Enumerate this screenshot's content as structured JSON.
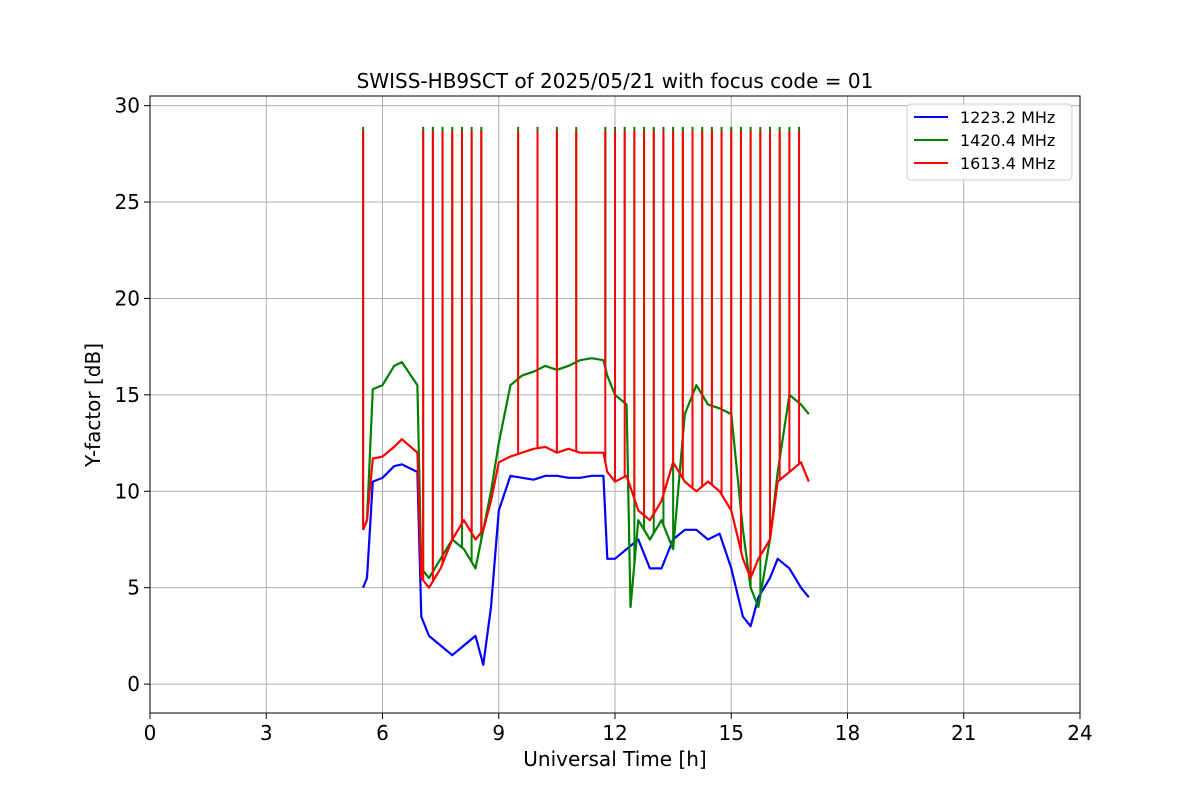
{
  "chart_data": {
    "type": "line",
    "title": "SWISS-HB9SCT of 2025/05/21 with focus code = 01",
    "xlabel": "Universal Time [h]",
    "ylabel": "Y-factor [dB]",
    "xlim": [
      0,
      24
    ],
    "ylim": [
      -1.5,
      30.5
    ],
    "xticks": [
      0,
      3,
      6,
      9,
      12,
      15,
      18,
      21,
      24
    ],
    "yticks": [
      0,
      5,
      10,
      15,
      20,
      25,
      30
    ],
    "grid": true,
    "legend_position": "top-right",
    "series": [
      {
        "name": "1223.2 MHz",
        "color": "#0000ff",
        "x": [
          5.5,
          5.6,
          5.75,
          6.0,
          6.3,
          6.5,
          6.9,
          7.0,
          7.2,
          7.5,
          7.8,
          8.1,
          8.4,
          8.6,
          8.8,
          9.0,
          9.3,
          9.6,
          9.9,
          10.2,
          10.5,
          10.8,
          11.1,
          11.4,
          11.7,
          11.8,
          12.0,
          12.3,
          12.6,
          12.9,
          13.2,
          13.5,
          13.8,
          14.1,
          14.4,
          14.7,
          15.0,
          15.3,
          15.5,
          15.7,
          16.0,
          16.2,
          16.5,
          16.8,
          17.0
        ],
        "y": [
          5.0,
          5.5,
          10.5,
          10.7,
          11.3,
          11.4,
          11.0,
          3.5,
          2.5,
          2.0,
          1.5,
          2.0,
          2.5,
          1.0,
          4.0,
          9.0,
          10.8,
          10.7,
          10.6,
          10.8,
          10.8,
          10.7,
          10.7,
          10.8,
          10.8,
          6.5,
          6.5,
          7.0,
          7.5,
          6.0,
          6.0,
          7.5,
          8.0,
          8.0,
          7.5,
          7.8,
          6.0,
          3.5,
          3.0,
          4.5,
          5.5,
          6.5,
          6.0,
          5.0,
          4.5
        ]
      },
      {
        "name": "1420.4 MHz",
        "color": "#008000",
        "x": [
          5.5,
          5.6,
          5.75,
          6.0,
          6.3,
          6.5,
          6.9,
          7.0,
          7.2,
          7.5,
          7.8,
          8.1,
          8.4,
          8.6,
          8.8,
          9.0,
          9.3,
          9.6,
          9.9,
          10.2,
          10.5,
          10.8,
          11.1,
          11.4,
          11.7,
          11.8,
          12.0,
          12.3,
          12.4,
          12.6,
          12.9,
          13.2,
          13.5,
          13.8,
          14.1,
          14.4,
          14.7,
          15.0,
          15.3,
          15.5,
          15.7,
          16.0,
          16.2,
          16.5,
          16.8,
          17.0
        ],
        "y": [
          8.0,
          8.5,
          15.3,
          15.5,
          16.5,
          16.7,
          15.5,
          6.0,
          5.5,
          6.5,
          7.5,
          7.0,
          6.0,
          8.0,
          10.0,
          12.5,
          15.5,
          16.0,
          16.2,
          16.5,
          16.3,
          16.5,
          16.8,
          16.9,
          16.8,
          16.0,
          15.0,
          14.5,
          4.0,
          8.5,
          7.5,
          8.5,
          7.0,
          14.0,
          15.5,
          14.5,
          14.3,
          14.0,
          8.0,
          5.0,
          4.0,
          7.5,
          11.0,
          15.0,
          14.5,
          14.0
        ]
      },
      {
        "name": "1613.4 MHz",
        "color": "#ff0000",
        "x": [
          5.5,
          5.6,
          5.75,
          6.0,
          6.3,
          6.5,
          6.9,
          7.0,
          7.2,
          7.5,
          7.8,
          8.1,
          8.4,
          8.6,
          8.8,
          9.0,
          9.3,
          9.6,
          9.9,
          10.2,
          10.5,
          10.8,
          11.1,
          11.4,
          11.7,
          11.8,
          12.0,
          12.3,
          12.6,
          12.9,
          13.2,
          13.5,
          13.8,
          14.1,
          14.4,
          14.7,
          15.0,
          15.3,
          15.5,
          15.7,
          16.0,
          16.2,
          16.5,
          16.8,
          17.0
        ],
        "y": [
          8.0,
          8.5,
          11.7,
          11.8,
          12.3,
          12.7,
          12.0,
          5.5,
          5.0,
          6.0,
          7.5,
          8.5,
          7.5,
          8.0,
          9.5,
          11.5,
          11.8,
          12.0,
          12.2,
          12.3,
          12.0,
          12.2,
          12.0,
          12.0,
          12.0,
          11.0,
          10.5,
          10.8,
          9.0,
          8.5,
          9.5,
          11.5,
          10.5,
          10.0,
          10.5,
          10.0,
          9.0,
          6.5,
          5.5,
          6.5,
          7.5,
          10.5,
          11.0,
          11.5,
          10.5
        ]
      }
    ],
    "calibration_spikes": {
      "times": [
        5.5,
        7.05,
        7.3,
        7.55,
        7.8,
        8.05,
        8.3,
        8.55,
        9.5,
        10.0,
        10.5,
        11.0,
        11.75,
        12.0,
        12.25,
        12.5,
        12.75,
        13.0,
        13.25,
        13.5,
        13.75,
        14.0,
        14.25,
        14.5,
        14.75,
        15.0,
        15.25,
        15.5,
        15.75,
        16.0,
        16.25,
        16.5,
        16.75
      ],
      "peak": 28.7
    }
  }
}
